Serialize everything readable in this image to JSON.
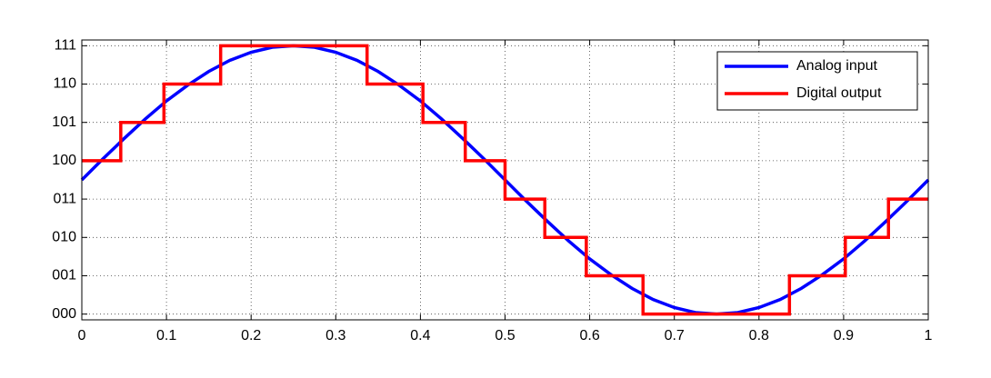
{
  "chart_data": {
    "type": "line",
    "series": [
      {
        "name": "Analog input",
        "color": "#0000ff",
        "x": [
          0,
          0.025,
          0.05,
          0.075,
          0.1,
          0.125,
          0.15,
          0.175,
          0.2,
          0.225,
          0.25,
          0.275,
          0.3,
          0.325,
          0.35,
          0.375,
          0.4,
          0.425,
          0.45,
          0.475,
          0.5,
          0.525,
          0.55,
          0.575,
          0.6,
          0.625,
          0.65,
          0.675,
          0.7,
          0.725,
          0.75,
          0.775,
          0.8,
          0.825,
          0.85,
          0.875,
          0.9,
          0.925,
          0.95,
          0.975,
          1
        ],
        "values": [
          3.5,
          4.05,
          4.58,
          5.09,
          5.56,
          5.97,
          6.33,
          6.62,
          6.83,
          6.96,
          7.0,
          6.96,
          6.83,
          6.62,
          6.33,
          5.97,
          5.56,
          5.09,
          4.58,
          4.05,
          3.5,
          2.95,
          2.42,
          1.91,
          1.44,
          1.03,
          0.67,
          0.38,
          0.17,
          0.04,
          0,
          0.04,
          0.17,
          0.38,
          0.67,
          1.03,
          1.44,
          1.91,
          2.42,
          2.95,
          3.5
        ]
      },
      {
        "name": "Digital output",
        "color": "#ff0000",
        "x": [
          0,
          0.046,
          0.046,
          0.097,
          0.097,
          0.164,
          0.164,
          0.337,
          0.337,
          0.403,
          0.403,
          0.453,
          0.453,
          0.5,
          0.5,
          0.547,
          0.547,
          0.596,
          0.596,
          0.663,
          0.663,
          0.836,
          0.836,
          0.902,
          0.902,
          0.953,
          0.953,
          1
        ],
        "values": [
          4,
          4,
          5,
          5,
          6,
          6,
          7,
          7,
          6,
          6,
          5,
          5,
          4,
          4,
          3,
          3,
          2,
          2,
          1,
          1,
          0,
          0,
          1,
          1,
          2,
          2,
          3,
          3
        ]
      }
    ],
    "xlim": [
      0,
      1
    ],
    "xticks": [
      0,
      0.1,
      0.2,
      0.3,
      0.4,
      0.5,
      0.6,
      0.7,
      0.8,
      0.9,
      1
    ],
    "ylim": [
      -0.15,
      7.15
    ],
    "yticks": [
      {
        "value": 0,
        "label": "000"
      },
      {
        "value": 1,
        "label": "001"
      },
      {
        "value": 2,
        "label": "010"
      },
      {
        "value": 3,
        "label": "011"
      },
      {
        "value": 4,
        "label": "100"
      },
      {
        "value": 5,
        "label": "101"
      },
      {
        "value": 6,
        "label": "110"
      },
      {
        "value": 7,
        "label": "111"
      }
    ],
    "grid": true,
    "legend": "upper right"
  }
}
